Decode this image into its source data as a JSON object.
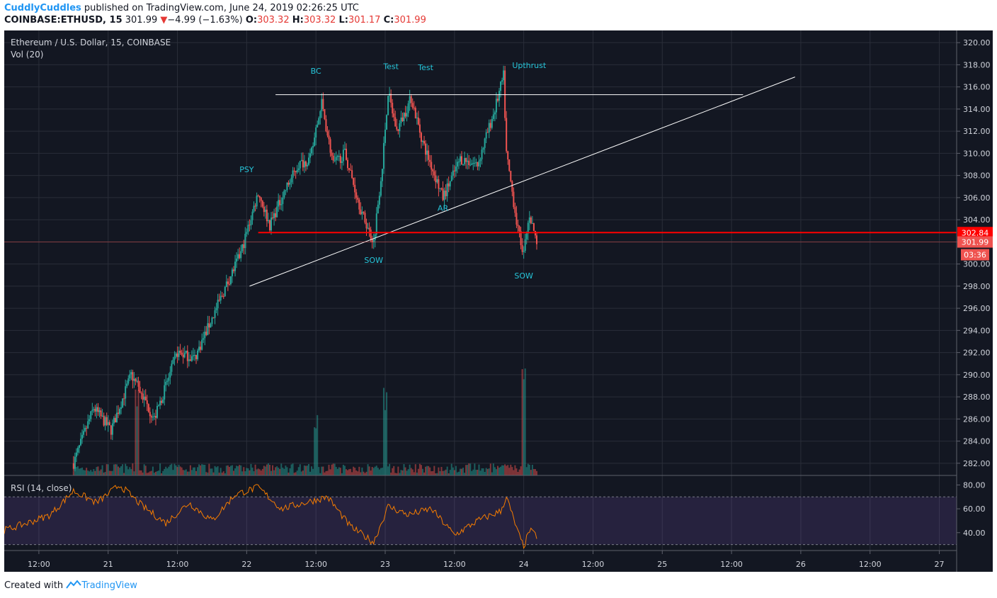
{
  "header": {
    "author": "CuddlyCuddles",
    "published_text": " published on TradingView.com, June 24, 2019 02:26:25 UTC",
    "symbol": "COINBASE:ETHUSD, 15",
    "last": "301.99",
    "change": "−4.99 (−1.63%)",
    "o_label": "O:",
    "o_val": "303.32",
    "h_label": "H:",
    "h_val": "303.32",
    "l_label": "L:",
    "l_val": "301.17",
    "c_label": "C:",
    "c_val": "301.99"
  },
  "legend": {
    "title": "Ethereum / U.S. Dollar, 15, COINBASE",
    "vol": "Vol (20)",
    "rsi": "RSI (14, close)"
  },
  "footer": {
    "created": "Created with",
    "brand": "TradingView"
  },
  "colors": {
    "bg": "#131722",
    "up": "#26a69a",
    "down": "#ef5350",
    "rsi_line": "#f57c00",
    "level": "#ff0000",
    "annotation": "#26c6da"
  },
  "chart_data": {
    "type": "candlestick",
    "ylim": [
      280.9,
      321.1
    ],
    "yticks": [
      "320.00",
      "318.00",
      "316.00",
      "314.00",
      "312.00",
      "310.00",
      "308.00",
      "306.00",
      "304.00",
      "302.00",
      "300.00",
      "298.00",
      "296.00",
      "294.00",
      "292.00",
      "290.00",
      "288.00",
      "286.00",
      "284.00",
      "282.00"
    ],
    "xlabels": [
      "12:00",
      "21",
      "12:00",
      "22",
      "12:00",
      "23",
      "12:00",
      "24",
      "12:00",
      "25",
      "12:00",
      "26",
      "12:00",
      "27"
    ],
    "x_start": "2019-06-20T06:00",
    "x_end": "2019-06-27T03:00",
    "last_candle": "2019-06-24T02:15",
    "close_path": [
      [
        "2019-06-20T18:00",
        282.0
      ],
      [
        "2019-06-20T21:30",
        287.0
      ],
      [
        "2019-06-21T00:30",
        285.0
      ],
      [
        "2019-06-21T04:00",
        290.0
      ],
      [
        "2019-06-21T06:00",
        288.0
      ],
      [
        "2019-06-21T08:00",
        286.0
      ],
      [
        "2019-06-21T12:00",
        292.0
      ],
      [
        "2019-06-21T15:00",
        291.5
      ],
      [
        "2019-06-21T20:00",
        297.5
      ],
      [
        "2019-06-21T23:00",
        301.0
      ],
      [
        "2019-06-22T02:00",
        306.5
      ],
      [
        "2019-06-22T04:00",
        303.5
      ],
      [
        "2019-06-22T06:30",
        306.5
      ],
      [
        "2019-06-22T09:00",
        309.0
      ],
      [
        "2019-06-22T11:00",
        309.5
      ],
      [
        "2019-06-22T13:00",
        314.5
      ],
      [
        "2019-06-22T15:00",
        309.0
      ],
      [
        "2019-06-22T17:00",
        310.0
      ],
      [
        "2019-06-22T20:00",
        304.5
      ],
      [
        "2019-06-22T22:00",
        302.0
      ],
      [
        "2019-06-22T23:30",
        309.0
      ],
      [
        "2019-06-23T00:30",
        315.5
      ],
      [
        "2019-06-23T02:00",
        312.0
      ],
      [
        "2019-06-23T04:30",
        315.0
      ],
      [
        "2019-06-23T06:30",
        311.0
      ],
      [
        "2019-06-23T10:00",
        306.0
      ],
      [
        "2019-06-23T13:00",
        309.5
      ],
      [
        "2019-06-23T16:00",
        309.0
      ],
      [
        "2019-06-23T19:00",
        314.0
      ],
      [
        "2019-06-23T20:30",
        317.0
      ],
      [
        "2019-06-23T21:00",
        310.0
      ],
      [
        "2019-06-23T23:00",
        303.0
      ],
      [
        "2019-06-24T00:00",
        301.0
      ],
      [
        "2019-06-24T01:00",
        304.5
      ],
      [
        "2019-06-24T02:15",
        301.99
      ]
    ],
    "volume_spikes": [
      [
        "2019-06-21T05:00",
        "high"
      ],
      [
        "2019-06-22T12:00",
        "medium"
      ],
      [
        "2019-06-23T00:00",
        "high"
      ],
      [
        "2019-06-24T00:00",
        "very high"
      ]
    ],
    "horizontal_levels": [
      {
        "label": "302.84",
        "value": 302.84,
        "color": "#ff0000"
      }
    ],
    "last_price": {
      "label": "301.99",
      "value": 301.99,
      "countdown": "03:36"
    },
    "trendlines": [
      {
        "from": [
          "2019-06-22T00:30",
          298.0
        ],
        "to": [
          "2019-06-25T23:00",
          316.9
        ]
      },
      {
        "from": [
          "2019-06-22T05:00",
          315.3
        ],
        "to": [
          "2019-06-25T14:00",
          315.3
        ]
      }
    ],
    "annotations": [
      {
        "text": "BC",
        "at": [
          "2019-06-22T12:00",
          317.2
        ]
      },
      {
        "text": "Test",
        "at": [
          "2019-06-23T01:00",
          317.6
        ]
      },
      {
        "text": "Test",
        "at": [
          "2019-06-23T07:00",
          317.5
        ]
      },
      {
        "text": "Upthrust",
        "at": [
          "2019-06-23T22:00",
          317.7
        ]
      },
      {
        "text": "PSY",
        "at": [
          "2019-06-22T00:00",
          308.3
        ]
      },
      {
        "text": "AR",
        "at": [
          "2019-06-23T10:00",
          304.8
        ]
      },
      {
        "text": "SOW",
        "at": [
          "2019-06-22T22:00",
          300.1
        ]
      },
      {
        "text": "SOW",
        "at": [
          "2019-06-24T00:00",
          298.7
        ]
      }
    ],
    "rsi": {
      "ylim": [
        25,
        88
      ],
      "yticks": [
        "80.00",
        "60.00",
        "40.00"
      ],
      "band": [
        30,
        70
      ],
      "path": [
        [
          "2019-06-20T06:00",
          42
        ],
        [
          "2019-06-20T10:00",
          48
        ],
        [
          "2019-06-20T14:00",
          55
        ],
        [
          "2019-06-20T18:00",
          75
        ],
        [
          "2019-06-20T22:00",
          65
        ],
        [
          "2019-06-21T02:00",
          80
        ],
        [
          "2019-06-21T06:00",
          62
        ],
        [
          "2019-06-21T10:00",
          48
        ],
        [
          "2019-06-21T14:00",
          65
        ],
        [
          "2019-06-21T18:00",
          50
        ],
        [
          "2019-06-21T22:00",
          72
        ],
        [
          "2019-06-22T02:00",
          78
        ],
        [
          "2019-06-22T06:00",
          60
        ],
        [
          "2019-06-22T10:00",
          65
        ],
        [
          "2019-06-22T14:00",
          70
        ],
        [
          "2019-06-22T18:00",
          45
        ],
        [
          "2019-06-22T22:00",
          32
        ],
        [
          "2019-06-23T00:30",
          62
        ],
        [
          "2019-06-23T04:00",
          55
        ],
        [
          "2019-06-23T08:00",
          60
        ],
        [
          "2019-06-23T12:00",
          38
        ],
        [
          "2019-06-23T16:00",
          50
        ],
        [
          "2019-06-23T20:00",
          58
        ],
        [
          "2019-06-23T21:00",
          70
        ],
        [
          "2019-06-23T23:00",
          40
        ],
        [
          "2019-06-24T00:00",
          28
        ],
        [
          "2019-06-24T01:00",
          42
        ],
        [
          "2019-06-24T02:15",
          37
        ]
      ]
    }
  }
}
